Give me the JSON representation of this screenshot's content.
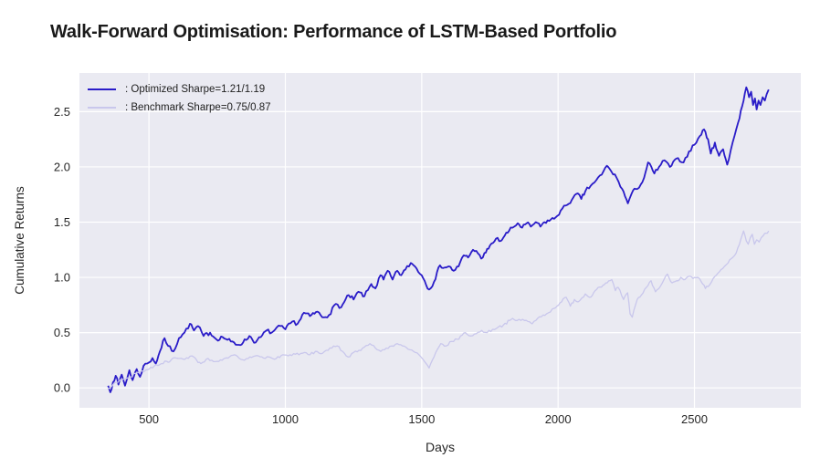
{
  "chart_data": {
    "type": "line",
    "title": "Walk-Forward Optimisation: Performance of LSTM-Based Portfolio",
    "xlabel": "Days",
    "ylabel": "Cumulative Returns",
    "xlim": [
      245,
      2890
    ],
    "ylim": [
      -0.18,
      2.85
    ],
    "grid": true,
    "legend_position": "upper left",
    "x_ticks": {
      "values": [
        500,
        1000,
        1500,
        2000,
        2500
      ],
      "labels": [
        "500",
        "1000",
        "1500",
        "2000",
        "2500"
      ]
    },
    "y_ticks": {
      "values": [
        0.0,
        0.5,
        1.0,
        1.5,
        2.0,
        2.5
      ],
      "labels": [
        "0.0",
        "0.5",
        "1.0",
        "1.5",
        "2.0",
        "2.5"
      ]
    },
    "colors": {
      "plot_background": "#eaeaf2",
      "grid_line": "#ffffff",
      "tick_label": "#262626",
      "axis_label": "#262626",
      "title": "#1a1a1a"
    },
    "render_noise": {
      "seed": 7,
      "step_days": 6
    },
    "series": [
      {
        "name": "optimized",
        "label": ": Optimized Sharpe=1.21/1.19",
        "color": "#2a1cc8",
        "line_width": 1.8,
        "noise_amp": 0.018,
        "points": [
          [
            350,
            0.02
          ],
          [
            358,
            -0.04
          ],
          [
            368,
            0.05
          ],
          [
            378,
            0.11
          ],
          [
            388,
            0.03
          ],
          [
            400,
            0.12
          ],
          [
            412,
            0.02
          ],
          [
            428,
            0.16
          ],
          [
            440,
            0.07
          ],
          [
            455,
            0.17
          ],
          [
            467,
            0.1
          ],
          [
            480,
            0.2
          ],
          [
            500,
            0.23
          ],
          [
            513,
            0.27
          ],
          [
            525,
            0.22
          ],
          [
            540,
            0.33
          ],
          [
            557,
            0.45
          ],
          [
            570,
            0.38
          ],
          [
            590,
            0.33
          ],
          [
            610,
            0.45
          ],
          [
            630,
            0.5
          ],
          [
            650,
            0.58
          ],
          [
            665,
            0.52
          ],
          [
            680,
            0.56
          ],
          [
            700,
            0.47
          ],
          [
            724,
            0.5
          ],
          [
            747,
            0.44
          ],
          [
            770,
            0.46
          ],
          [
            800,
            0.42
          ],
          [
            824,
            0.39
          ],
          [
            845,
            0.41
          ],
          [
            868,
            0.47
          ],
          [
            891,
            0.41
          ],
          [
            910,
            0.46
          ],
          [
            931,
            0.52
          ],
          [
            950,
            0.5
          ],
          [
            982,
            0.56
          ],
          [
            1000,
            0.53
          ],
          [
            1025,
            0.6
          ],
          [
            1045,
            0.58
          ],
          [
            1068,
            0.68
          ],
          [
            1090,
            0.65
          ],
          [
            1118,
            0.69
          ],
          [
            1135,
            0.64
          ],
          [
            1160,
            0.66
          ],
          [
            1185,
            0.76
          ],
          [
            1205,
            0.73
          ],
          [
            1232,
            0.84
          ],
          [
            1250,
            0.8
          ],
          [
            1268,
            0.87
          ],
          [
            1290,
            0.83
          ],
          [
            1315,
            0.94
          ],
          [
            1330,
            0.9
          ],
          [
            1349,
            1.02
          ],
          [
            1360,
            0.98
          ],
          [
            1375,
            1.06
          ],
          [
            1393,
            0.98
          ],
          [
            1410,
            1.06
          ],
          [
            1425,
            1.02
          ],
          [
            1440,
            1.07
          ],
          [
            1460,
            1.13
          ],
          [
            1475,
            1.1
          ],
          [
            1500,
            1.02
          ],
          [
            1527,
            0.89
          ],
          [
            1545,
            0.96
          ],
          [
            1567,
            1.11
          ],
          [
            1585,
            1.09
          ],
          [
            1600,
            1.1
          ],
          [
            1617,
            1.06
          ],
          [
            1635,
            1.1
          ],
          [
            1654,
            1.2
          ],
          [
            1670,
            1.18
          ],
          [
            1688,
            1.25
          ],
          [
            1700,
            1.24
          ],
          [
            1718,
            1.17
          ],
          [
            1730,
            1.22
          ],
          [
            1745,
            1.26
          ],
          [
            1772,
            1.35
          ],
          [
            1790,
            1.33
          ],
          [
            1805,
            1.38
          ],
          [
            1820,
            1.42
          ],
          [
            1852,
            1.49
          ],
          [
            1868,
            1.45
          ],
          [
            1885,
            1.49
          ],
          [
            1900,
            1.46
          ],
          [
            1918,
            1.5
          ],
          [
            1935,
            1.46
          ],
          [
            1950,
            1.5
          ],
          [
            1985,
            1.53
          ],
          [
            2028,
            1.65
          ],
          [
            2050,
            1.7
          ],
          [
            2072,
            1.76
          ],
          [
            2085,
            1.71
          ],
          [
            2100,
            1.78
          ],
          [
            2120,
            1.83
          ],
          [
            2140,
            1.88
          ],
          [
            2160,
            1.93
          ],
          [
            2179,
            2.01
          ],
          [
            2195,
            1.96
          ],
          [
            2215,
            1.9
          ],
          [
            2235,
            1.8
          ],
          [
            2256,
            1.67
          ],
          [
            2270,
            1.76
          ],
          [
            2285,
            1.8
          ],
          [
            2303,
            1.84
          ],
          [
            2315,
            1.9
          ],
          [
            2330,
            2.04
          ],
          [
            2353,
            1.94
          ],
          [
            2370,
            2.0
          ],
          [
            2390,
            2.06
          ],
          [
            2410,
            2.0
          ],
          [
            2440,
            2.08
          ],
          [
            2460,
            2.04
          ],
          [
            2480,
            2.14
          ],
          [
            2500,
            2.2
          ],
          [
            2520,
            2.28
          ],
          [
            2535,
            2.34
          ],
          [
            2550,
            2.25
          ],
          [
            2560,
            2.12
          ],
          [
            2575,
            2.22
          ],
          [
            2590,
            2.1
          ],
          [
            2605,
            2.16
          ],
          [
            2620,
            2.02
          ],
          [
            2640,
            2.22
          ],
          [
            2660,
            2.4
          ],
          [
            2675,
            2.55
          ],
          [
            2690,
            2.72
          ],
          [
            2700,
            2.63
          ],
          [
            2708,
            2.68
          ],
          [
            2715,
            2.56
          ],
          [
            2722,
            2.62
          ],
          [
            2728,
            2.52
          ],
          [
            2735,
            2.6
          ],
          [
            2742,
            2.56
          ],
          [
            2750,
            2.63
          ],
          [
            2758,
            2.6
          ],
          [
            2765,
            2.66
          ],
          [
            2772,
            2.7
          ]
        ]
      },
      {
        "name": "benchmark",
        "label": ": Benchmark Sharpe=0.75/0.87",
        "color": "#c9c7ec",
        "line_width": 1.3,
        "noise_amp": 0.012,
        "points": [
          [
            350,
            0.0
          ],
          [
            365,
            0.02
          ],
          [
            380,
            0.05
          ],
          [
            400,
            0.07
          ],
          [
            420,
            0.09
          ],
          [
            433,
            0.1
          ],
          [
            450,
            0.13
          ],
          [
            470,
            0.15
          ],
          [
            500,
            0.17
          ],
          [
            520,
            0.2
          ],
          [
            545,
            0.22
          ],
          [
            565,
            0.24
          ],
          [
            580,
            0.25
          ],
          [
            600,
            0.27
          ],
          [
            625,
            0.26
          ],
          [
            657,
            0.29
          ],
          [
            675,
            0.25
          ],
          [
            690,
            0.22
          ],
          [
            710,
            0.26
          ],
          [
            730,
            0.25
          ],
          [
            750,
            0.24
          ],
          [
            768,
            0.25
          ],
          [
            790,
            0.27
          ],
          [
            814,
            0.3
          ],
          [
            830,
            0.27
          ],
          [
            850,
            0.25
          ],
          [
            870,
            0.28
          ],
          [
            901,
            0.29
          ],
          [
            920,
            0.27
          ],
          [
            940,
            0.28
          ],
          [
            960,
            0.26
          ],
          [
            991,
            0.3
          ],
          [
            1010,
            0.29
          ],
          [
            1030,
            0.31
          ],
          [
            1050,
            0.3
          ],
          [
            1070,
            0.32
          ],
          [
            1090,
            0.3
          ],
          [
            1110,
            0.33
          ],
          [
            1130,
            0.31
          ],
          [
            1150,
            0.34
          ],
          [
            1170,
            0.36
          ],
          [
            1190,
            0.38
          ],
          [
            1210,
            0.33
          ],
          [
            1230,
            0.28
          ],
          [
            1250,
            0.32
          ],
          [
            1270,
            0.34
          ],
          [
            1290,
            0.37
          ],
          [
            1310,
            0.4
          ],
          [
            1330,
            0.36
          ],
          [
            1350,
            0.33
          ],
          [
            1370,
            0.36
          ],
          [
            1390,
            0.38
          ],
          [
            1410,
            0.4
          ],
          [
            1430,
            0.38
          ],
          [
            1450,
            0.35
          ],
          [
            1470,
            0.33
          ],
          [
            1490,
            0.3
          ],
          [
            1510,
            0.24
          ],
          [
            1527,
            0.18
          ],
          [
            1545,
            0.28
          ],
          [
            1570,
            0.4
          ],
          [
            1590,
            0.38
          ],
          [
            1610,
            0.42
          ],
          [
            1630,
            0.44
          ],
          [
            1660,
            0.5
          ],
          [
            1680,
            0.47
          ],
          [
            1700,
            0.49
          ],
          [
            1720,
            0.52
          ],
          [
            1740,
            0.5
          ],
          [
            1760,
            0.53
          ],
          [
            1780,
            0.55
          ],
          [
            1800,
            0.57
          ],
          [
            1828,
            0.62
          ],
          [
            1850,
            0.61
          ],
          [
            1870,
            0.62
          ],
          [
            1890,
            0.6
          ],
          [
            1905,
            0.58
          ],
          [
            1925,
            0.63
          ],
          [
            1945,
            0.66
          ],
          [
            1965,
            0.68
          ],
          [
            1985,
            0.72
          ],
          [
            2007,
            0.77
          ],
          [
            2030,
            0.82
          ],
          [
            2045,
            0.74
          ],
          [
            2060,
            0.8
          ],
          [
            2075,
            0.78
          ],
          [
            2100,
            0.85
          ],
          [
            2115,
            0.82
          ],
          [
            2130,
            0.86
          ],
          [
            2147,
            0.91
          ],
          [
            2165,
            0.93
          ],
          [
            2180,
            0.95
          ],
          [
            2197,
            0.98
          ],
          [
            2210,
            0.88
          ],
          [
            2220,
            0.91
          ],
          [
            2240,
            0.8
          ],
          [
            2255,
            0.86
          ],
          [
            2264,
            0.67
          ],
          [
            2272,
            0.64
          ],
          [
            2290,
            0.8
          ],
          [
            2305,
            0.84
          ],
          [
            2324,
            0.91
          ],
          [
            2341,
            0.97
          ],
          [
            2357,
            0.87
          ],
          [
            2375,
            0.92
          ],
          [
            2401,
            1.03
          ],
          [
            2418,
            0.95
          ],
          [
            2435,
            0.97
          ],
          [
            2450,
            1.0
          ],
          [
            2465,
            0.98
          ],
          [
            2480,
            1.01
          ],
          [
            2495,
            0.99
          ],
          [
            2510,
            1.0
          ],
          [
            2525,
            0.96
          ],
          [
            2540,
            0.9
          ],
          [
            2555,
            0.93
          ],
          [
            2563,
            0.96
          ],
          [
            2580,
            1.02
          ],
          [
            2597,
            1.07
          ],
          [
            2610,
            1.1
          ],
          [
            2623,
            1.13
          ],
          [
            2640,
            1.18
          ],
          [
            2653,
            1.22
          ],
          [
            2665,
            1.3
          ],
          [
            2680,
            1.42
          ],
          [
            2690,
            1.33
          ],
          [
            2697,
            1.3
          ],
          [
            2705,
            1.36
          ],
          [
            2712,
            1.39
          ],
          [
            2720,
            1.3
          ],
          [
            2728,
            1.34
          ],
          [
            2737,
            1.32
          ],
          [
            2745,
            1.36
          ],
          [
            2753,
            1.38
          ],
          [
            2762,
            1.4
          ],
          [
            2772,
            1.42
          ]
        ]
      }
    ]
  }
}
